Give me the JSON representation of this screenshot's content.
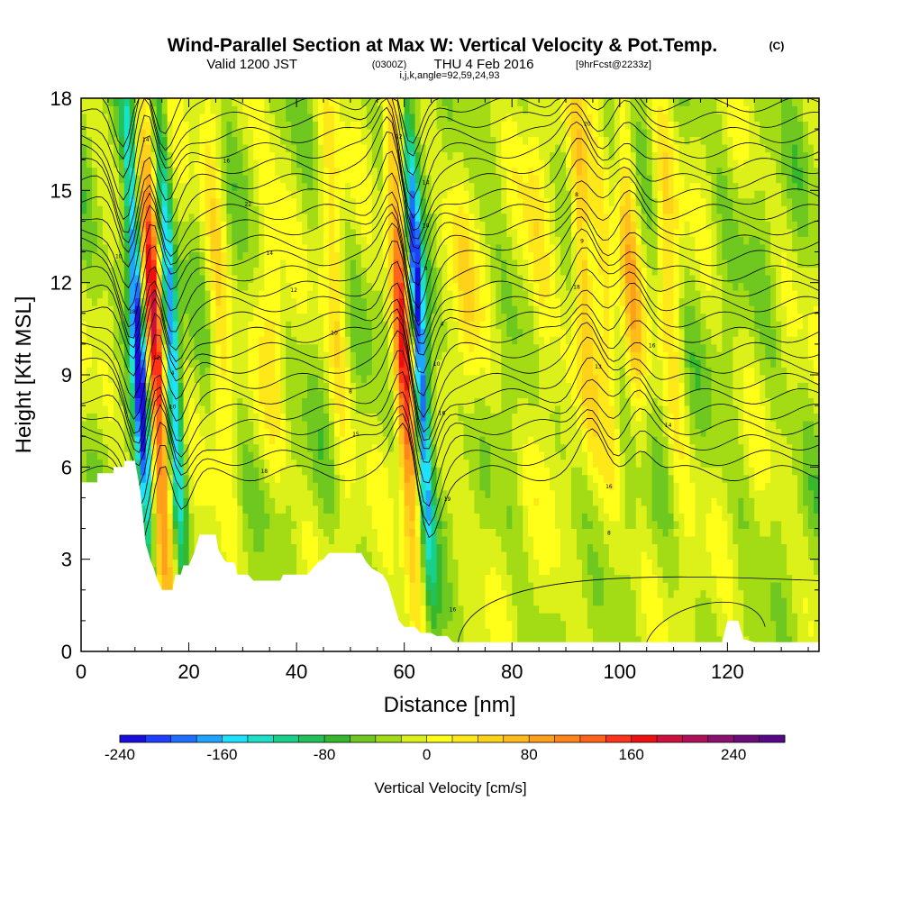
{
  "title": {
    "main": "Wind-Parallel Section at Max W: Vertical Velocity & Pot.Temp.",
    "copyright": "(C)",
    "valid_prefix": "Valid 1200 JST",
    "valid_utc": "(0300Z)",
    "valid_date": "THU 4 Feb 2016",
    "forecast": "[9hrFcst@2233z]",
    "section_params": "i,j,k,angle=92,59,24,93"
  },
  "chart_data": {
    "type": "heatmap",
    "xlabel": "Distance [nm]",
    "ylabel": "Height [Kft MSL]",
    "xlim": [
      0,
      137
    ],
    "ylim": [
      0,
      18
    ],
    "xticks": [
      0,
      20,
      40,
      60,
      80,
      100,
      120
    ],
    "yticks": [
      0,
      3,
      6,
      9,
      12,
      15,
      18
    ],
    "xtick_labels": [
      "0",
      "20",
      "40",
      "60",
      "80",
      "100",
      "120"
    ],
    "ytick_labels": [
      "0",
      "3",
      "6",
      "9",
      "12",
      "15",
      "18"
    ],
    "colorbar": {
      "title": "Vertical Velocity [cm/s]",
      "min": -240,
      "max": 280,
      "tick_values": [
        -240,
        -160,
        -80,
        0,
        80,
        160,
        240
      ],
      "tick_labels": [
        "-240",
        "-160",
        "-80",
        "0",
        "80",
        "160",
        "240"
      ],
      "colors": [
        "#1a0de0",
        "#1f3fff",
        "#1f6fff",
        "#1fa5ff",
        "#1fe0ff",
        "#1ce0c8",
        "#19d08a",
        "#21c25a",
        "#36b82c",
        "#6ec81f",
        "#a3dc14",
        "#dcf01a",
        "#ffff1a",
        "#ffe81a",
        "#ffd21a",
        "#ffbc1a",
        "#ffa01a",
        "#ff841a",
        "#ff641a",
        "#ff321a",
        "#ee1010",
        "#d0103c",
        "#b0105a",
        "#8c1070",
        "#6c0a7c",
        "#560888"
      ]
    },
    "fields": {
      "vertical_velocity_units": "cm/s",
      "contours": "potential temperature (C)",
      "features": [
        {
          "kind": "updraft",
          "x_nm": 14,
          "peak_cm_s": 200
        },
        {
          "kind": "downdraft",
          "x_nm": 11,
          "peak_cm_s": -230
        },
        {
          "kind": "downdraft",
          "x_nm": 17,
          "peak_cm_s": -160
        },
        {
          "kind": "updraft",
          "x_nm": 60,
          "peak_cm_s": 180
        },
        {
          "kind": "downdraft",
          "x_nm": 63,
          "peak_cm_s": -220
        },
        {
          "kind": "updraft",
          "x_nm": 94,
          "peak_cm_s": 100
        },
        {
          "kind": "updraft",
          "x_nm": 103,
          "peak_cm_s": 80
        }
      ],
      "terrain_kft": [
        [
          0,
          5.5
        ],
        [
          3,
          5.5
        ],
        [
          3,
          5.8
        ],
        [
          6,
          5.8
        ],
        [
          6,
          6.0
        ],
        [
          8,
          6.0
        ],
        [
          8,
          6.2
        ],
        [
          10,
          6.2
        ],
        [
          11,
          5.2
        ],
        [
          12,
          3.5
        ],
        [
          13,
          2.9
        ],
        [
          13.5,
          2.7
        ],
        [
          14,
          2.4
        ],
        [
          14.5,
          2.2
        ],
        [
          15,
          2.0
        ],
        [
          17,
          2.0
        ],
        [
          17.5,
          2.5
        ],
        [
          18.5,
          2.5
        ],
        [
          19,
          2.8
        ],
        [
          20,
          2.8
        ],
        [
          21,
          3.2
        ],
        [
          22,
          3.8
        ],
        [
          25,
          3.8
        ],
        [
          25.5,
          3.3
        ],
        [
          26.5,
          3.0
        ],
        [
          27,
          2.9
        ],
        [
          28.5,
          2.9
        ],
        [
          29,
          2.5
        ],
        [
          31,
          2.5
        ],
        [
          32,
          2.3
        ],
        [
          37,
          2.3
        ],
        [
          37.5,
          2.5
        ],
        [
          42,
          2.5
        ],
        [
          43,
          2.7
        ],
        [
          44,
          2.9
        ],
        [
          45,
          3.0
        ],
        [
          46,
          3.2
        ],
        [
          52,
          3.2
        ],
        [
          53,
          2.9
        ],
        [
          54,
          2.7
        ],
        [
          56,
          2.5
        ],
        [
          57,
          2.2
        ],
        [
          58,
          1.6
        ],
        [
          59,
          1.0
        ],
        [
          60,
          0.8
        ],
        [
          62,
          0.8
        ],
        [
          63,
          0.6
        ],
        [
          65,
          0.6
        ],
        [
          66,
          0.5
        ],
        [
          68,
          0.5
        ],
        [
          69,
          0.3
        ],
        [
          119,
          0.3
        ],
        [
          120,
          1.0
        ],
        [
          122,
          1.0
        ],
        [
          123,
          0.4
        ],
        [
          125,
          0.3
        ],
        [
          137,
          0.3
        ]
      ],
      "isentrope_labels": [
        "14",
        "10",
        "18",
        "12",
        "4",
        "10",
        "16",
        "22",
        "14",
        "12",
        "10",
        "8",
        "15",
        "18",
        "12",
        "14",
        "10",
        "8",
        "4",
        "10",
        "16",
        "19",
        "16",
        "20",
        "8",
        "9",
        "18",
        "13",
        "16",
        "14",
        "16",
        "8",
        "8"
      ]
    }
  }
}
